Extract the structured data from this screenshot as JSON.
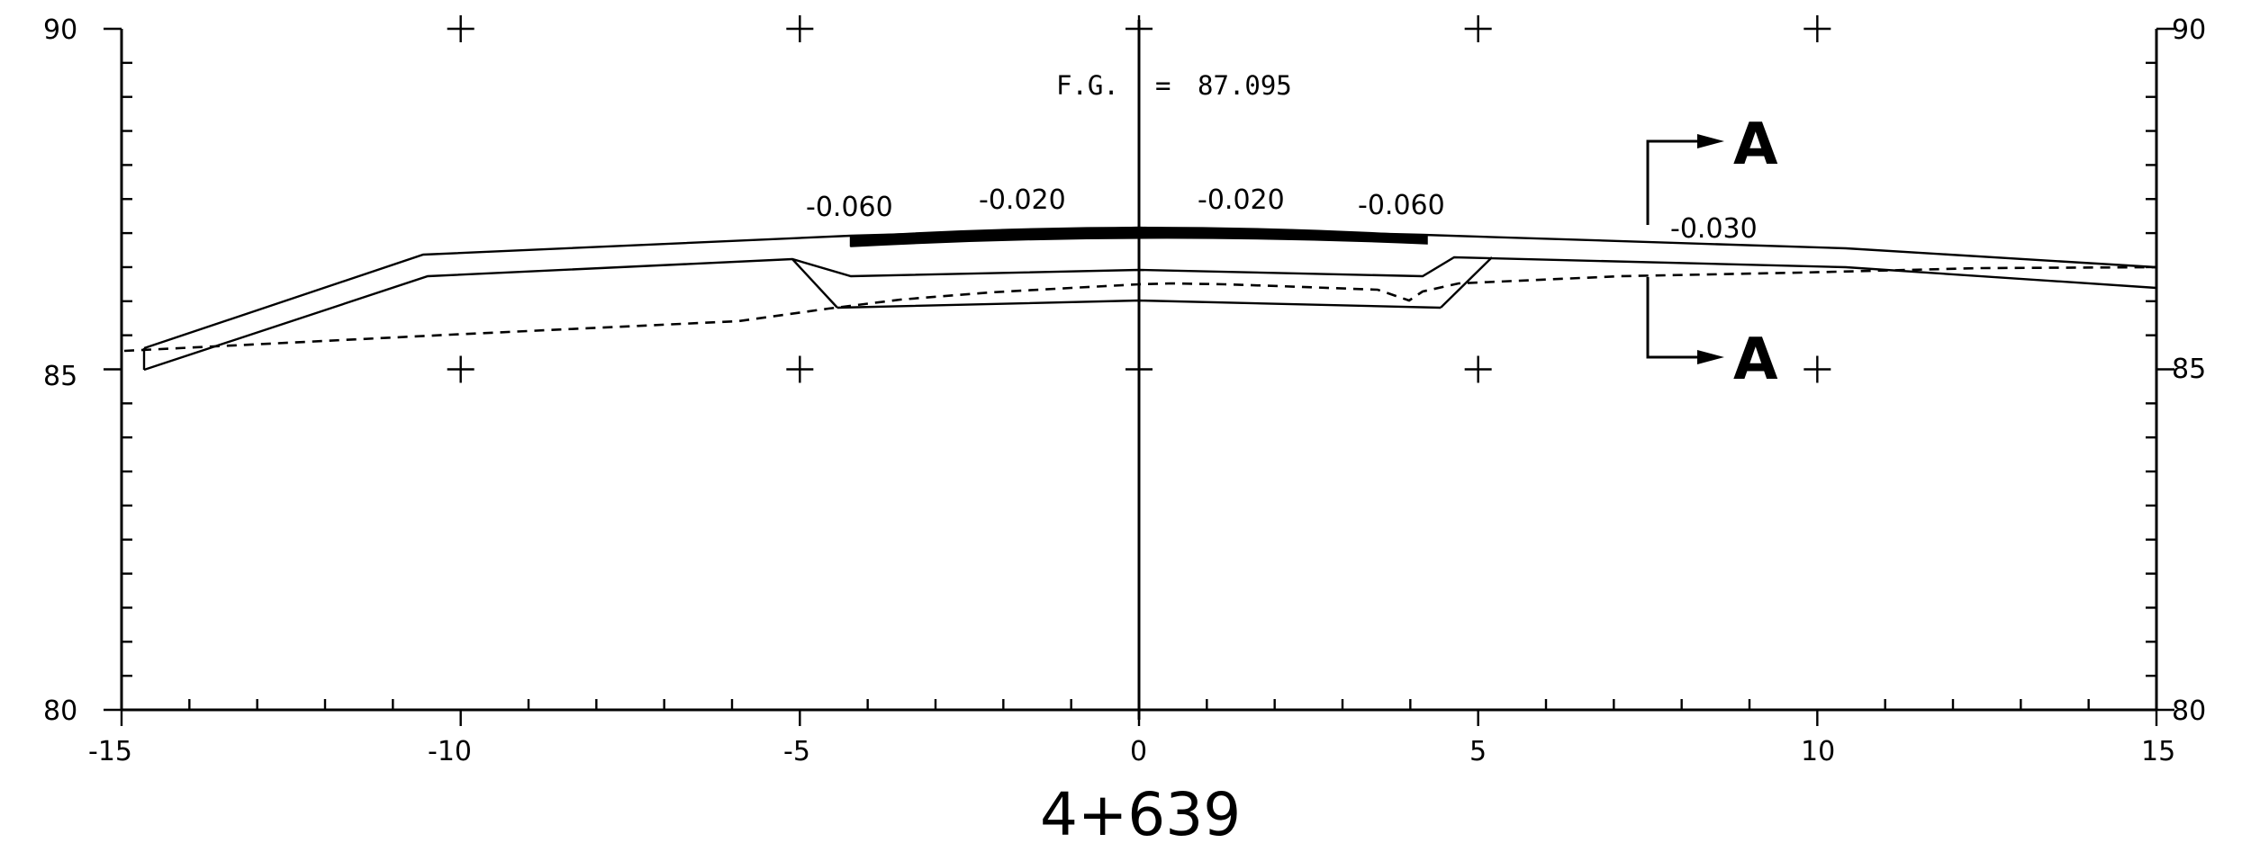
{
  "station": "4+639",
  "finished_grade_label": "F.G.",
  "finished_grade_sep": "=",
  "finished_grade_value": "87.095",
  "section_marker": "A",
  "x_ticks": [
    "-15",
    "-10",
    "-5",
    "0",
    "5",
    "10",
    "15"
  ],
  "y_ticks_left": [
    "90",
    "85",
    "80"
  ],
  "y_ticks_right": [
    "90",
    "85",
    "80"
  ],
  "slopes": [
    "-0.060",
    "-0.020",
    "-0.020",
    "-0.060",
    "-0.030"
  ],
  "chart_data": {
    "type": "line",
    "x_range": [
      -15,
      15
    ],
    "y_range": [
      80,
      90
    ],
    "finished_grade": 87.095,
    "series": [
      {
        "x": [
          -14.7,
          -10.5,
          0,
          10,
          15
        ],
        "y": [
          85.4,
          86.7,
          87.1,
          86.85,
          86.55
        ]
      },
      {
        "x": [
          -14.7,
          -10.5,
          -5,
          0,
          5,
          10,
          15
        ],
        "y": [
          85.1,
          86.4,
          86.65,
          86.5,
          86.65,
          86.5,
          86.2
        ]
      },
      {
        "x": [
          -14.7,
          -10,
          -5,
          0,
          5,
          10,
          15
        ],
        "y": [
          85.35,
          85.55,
          85.9,
          86.25,
          86.3,
          86.45,
          86.55
        ]
      }
    ]
  }
}
